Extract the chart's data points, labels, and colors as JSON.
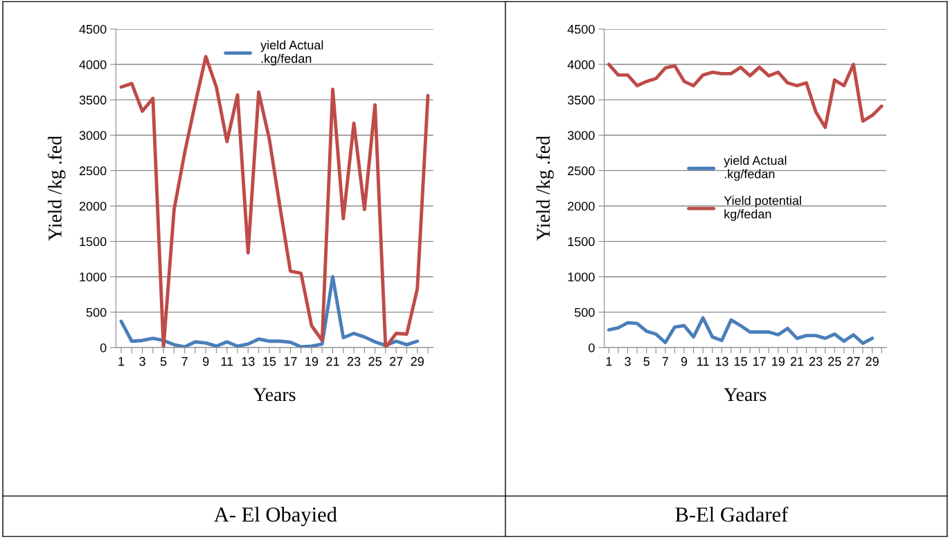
{
  "chart_data": [
    {
      "type": "line",
      "xlabel": "Years",
      "ylabel": "Yield /kg .fed",
      "annotations": [
        "A- El Obayied"
      ],
      "categories": [
        "1",
        null,
        "3",
        null,
        "5",
        null,
        "7",
        null,
        "9",
        null,
        "11",
        null,
        "13",
        null,
        "15",
        null,
        "17",
        null,
        "19",
        null,
        "21",
        null,
        "23",
        null,
        "25",
        null,
        "27",
        null,
        "29",
        null
      ],
      "ylim": [
        0,
        4500
      ],
      "yticks": [
        0,
        500,
        1000,
        1500,
        2000,
        2500,
        3000,
        3500,
        4000,
        4500
      ],
      "grid": "y",
      "legend": "top",
      "line_style": "solid",
      "marker": "none",
      "series": [
        {
          "name": "yield Actual\n.kg/fedan",
          "color": "#4a7ebb",
          "values": [
            370,
            90,
            100,
            130,
            100,
            40,
            10,
            80,
            65,
            20,
            80,
            20,
            50,
            120,
            90,
            90,
            75,
            10,
            20,
            50,
            1000,
            140,
            200,
            150,
            80,
            30,
            90,
            40,
            90,
            null
          ]
        },
        {
          "color": "#be4b48",
          "values": [
            3680,
            3730,
            3340,
            3520,
            0,
            1950,
            2750,
            3450,
            4110,
            3680,
            2910,
            3570,
            1340,
            3610,
            2950,
            2000,
            1080,
            1050,
            310,
            100,
            3650,
            1820,
            3170,
            1950,
            3430,
            0,
            200,
            190,
            830,
            3560
          ]
        }
      ]
    },
    {
      "type": "line",
      "xlabel": "Years",
      "ylabel": "Yield /kg .fed",
      "annotations": [
        "B-El Gadaref"
      ],
      "categories": [
        "1",
        null,
        "3",
        null,
        "5",
        null,
        "7",
        null,
        "9",
        null,
        "11",
        null,
        "13",
        null,
        "15",
        null,
        "17",
        null,
        "19",
        null,
        "21",
        null,
        "23",
        null,
        "25",
        null,
        "27",
        null,
        "29",
        null
      ],
      "ylim": [
        0,
        4500
      ],
      "yticks": [
        0,
        500,
        1000,
        1500,
        2000,
        2500,
        3000,
        3500,
        4000,
        4500
      ],
      "grid": "y",
      "legend": "center",
      "line_style": "solid",
      "marker": "none",
      "series": [
        {
          "name": "yield Actual\n.kg/fedan",
          "color": "#4a7ebb",
          "values": [
            250,
            280,
            350,
            340,
            230,
            190,
            70,
            290,
            310,
            150,
            420,
            150,
            100,
            390,
            310,
            220,
            220,
            220,
            180,
            270,
            130,
            170,
            170,
            130,
            190,
            90,
            180,
            60,
            130,
            null
          ]
        },
        {
          "name": "Yield potential\nkg/fedan",
          "color": "#be4b48",
          "values": [
            4000,
            3850,
            3850,
            3700,
            3760,
            3800,
            3950,
            3980,
            3760,
            3700,
            3850,
            3890,
            3870,
            3870,
            3960,
            3840,
            3960,
            3840,
            3890,
            3740,
            3700,
            3740,
            3330,
            3110,
            3780,
            3700,
            4000,
            3200,
            3280,
            3410
          ]
        }
      ]
    }
  ]
}
